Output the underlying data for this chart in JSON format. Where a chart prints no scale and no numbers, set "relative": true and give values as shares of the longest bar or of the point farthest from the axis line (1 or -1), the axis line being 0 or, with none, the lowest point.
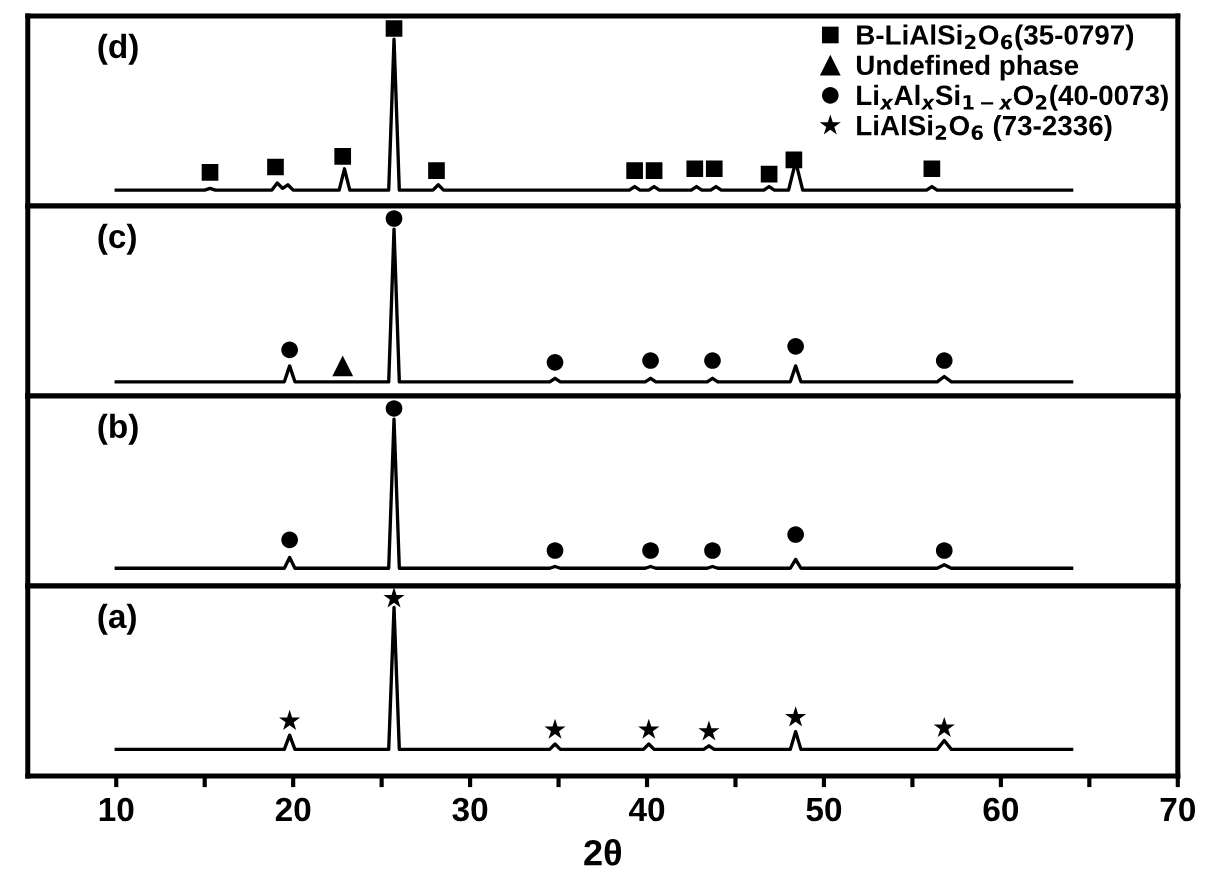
{
  "chart_data": [
    {
      "type": "line",
      "relative": true,
      "xlim": [
        5,
        70
      ],
      "tick_labels": false,
      "legend": "top right",
      "annotations": [
        "(d)"
      ],
      "series": [
        {
          "color": "#000000",
          "x": [
            10,
            15.0,
            15.3,
            15.6,
            18.8,
            19.1,
            19.4,
            19.7,
            20.0,
            22.6,
            22.9,
            23.2,
            25.4,
            25.7,
            26.0,
            27.9,
            28.2,
            28.5,
            39.0,
            39.3,
            39.6,
            40.1,
            40.4,
            40.7,
            42.5,
            42.8,
            43.1,
            43.6,
            43.9,
            44.2,
            46.6,
            46.9,
            47.2,
            48.0,
            48.4,
            48.8,
            55.8,
            56.1,
            56.4,
            64
          ],
          "values": [
            0.09,
            0.09,
            0.1,
            0.09,
            0.09,
            0.13,
            0.1,
            0.12,
            0.09,
            0.09,
            0.21,
            0.09,
            0.09,
            0.94,
            0.09,
            0.09,
            0.12,
            0.09,
            0.09,
            0.11,
            0.09,
            0.09,
            0.11,
            0.09,
            0.09,
            0.11,
            0.09,
            0.09,
            0.11,
            0.09,
            0.09,
            0.11,
            0.09,
            0.09,
            0.25,
            0.09,
            0.09,
            0.11,
            0.09,
            0.09
          ]
        },
        {
          "type": "scatter",
          "name": "B-LiAlSi$_{2}$O$_{6}$(35-0797)",
          "color": "#000000",
          "marker": "square",
          "x": [
            15.3,
            19.0,
            22.8,
            25.7,
            28.1,
            39.3,
            40.4,
            42.7,
            43.8,
            46.9,
            48.3,
            56.1
          ],
          "values": [
            0.19,
            0.22,
            0.28,
            1,
            0.2,
            0.2,
            0.2,
            0.21,
            0.21,
            0.18,
            0.26,
            0.21
          ]
        }
      ]
    },
    {
      "type": "line",
      "relative": true,
      "xlim": [
        5,
        70
      ],
      "tick_labels": false,
      "annotations": [
        "(c)"
      ],
      "series": [
        {
          "color": "#000000",
          "x": [
            10,
            19.5,
            19.8,
            20.1,
            25.4,
            25.7,
            26.0,
            34.5,
            34.8,
            35.1,
            39.9,
            40.2,
            40.5,
            43.4,
            43.7,
            44.0,
            48.1,
            48.4,
            48.7,
            56.4,
            56.8,
            57.2,
            64
          ],
          "values": [
            0.08,
            0.08,
            0.17,
            0.08,
            0.08,
            0.94,
            0.08,
            0.08,
            0.1,
            0.08,
            0.08,
            0.1,
            0.08,
            0.08,
            0.1,
            0.08,
            0.08,
            0.17,
            0.08,
            0.08,
            0.11,
            0.08,
            0.08
          ]
        },
        {
          "type": "scatter",
          "name": "Undefined phase",
          "color": "#000000",
          "marker": "triangle",
          "x": [
            22.8
          ],
          "values": [
            0.17
          ]
        },
        {
          "type": "scatter",
          "name": "Li$_{x}$Al$_{x}$Si$_{1−x}$O$_{2}$(40-0073)",
          "color": "#000000",
          "marker": "circle",
          "x": [
            19.8,
            25.7,
            34.8,
            40.2,
            43.7,
            48.4,
            56.8
          ],
          "values": [
            0.26,
            1,
            0.19,
            0.2,
            0.2,
            0.28,
            0.2
          ]
        }
      ]
    },
    {
      "type": "line",
      "relative": true,
      "xlim": [
        5,
        70
      ],
      "tick_labels": false,
      "annotations": [
        "(b)"
      ],
      "series": [
        {
          "color": "#000000",
          "x": [
            10,
            19.5,
            19.8,
            20.1,
            25.4,
            25.7,
            26.0,
            34.5,
            34.8,
            35.1,
            39.9,
            40.2,
            40.5,
            43.4,
            43.7,
            44.0,
            48.1,
            48.4,
            48.7,
            56.4,
            56.8,
            57.2,
            64
          ],
          "values": [
            0.1,
            0.1,
            0.16,
            0.1,
            0.1,
            0.94,
            0.1,
            0.1,
            0.11,
            0.1,
            0.1,
            0.11,
            0.1,
            0.1,
            0.11,
            0.1,
            0.1,
            0.15,
            0.1,
            0.1,
            0.12,
            0.1,
            0.1
          ]
        },
        {
          "type": "scatter",
          "color": "#000000",
          "marker": "circle",
          "x": [
            19.8,
            25.7,
            34.8,
            40.2,
            43.7,
            48.4,
            56.8
          ],
          "values": [
            0.26,
            1,
            0.2,
            0.2,
            0.2,
            0.29,
            0.2
          ]
        }
      ]
    },
    {
      "type": "line",
      "relative": true,
      "xlim": [
        5,
        70
      ],
      "tick_labels": "x",
      "xlabel": "2θ",
      "annotations": [
        "(a)"
      ],
      "xticks": [
        10,
        {
          "value": 15,
          "label": null
        },
        20,
        {
          "value": 25,
          "label": null
        },
        30,
        {
          "value": 35,
          "label": null
        },
        40,
        {
          "value": 45,
          "label": null
        },
        50,
        {
          "value": 55,
          "label": null
        },
        60,
        {
          "value": 65,
          "label": null
        },
        70
      ],
      "series": [
        {
          "color": "#000000",
          "x": [
            10,
            19.5,
            19.8,
            20.1,
            25.4,
            25.7,
            26.0,
            34.5,
            34.8,
            35.1,
            39.8,
            40.1,
            40.4,
            43.2,
            43.5,
            43.8,
            48.1,
            48.4,
            48.7,
            56.4,
            56.8,
            57.2,
            64
          ],
          "values": [
            0.15,
            0.15,
            0.23,
            0.15,
            0.15,
            0.95,
            0.15,
            0.15,
            0.18,
            0.15,
            0.15,
            0.18,
            0.15,
            0.15,
            0.17,
            0.15,
            0.15,
            0.25,
            0.15,
            0.15,
            0.2,
            0.15,
            0.15
          ]
        },
        {
          "type": "scatter",
          "name": "LiAlSi$_{2}$O$_{6}$ (73-2336)",
          "color": "#000000",
          "marker": "star",
          "x": [
            19.8,
            25.7,
            34.8,
            40.1,
            43.5,
            48.4,
            56.8
          ],
          "values": [
            0.31,
            1,
            0.26,
            0.26,
            0.25,
            0.33,
            0.27
          ]
        }
      ]
    }
  ]
}
